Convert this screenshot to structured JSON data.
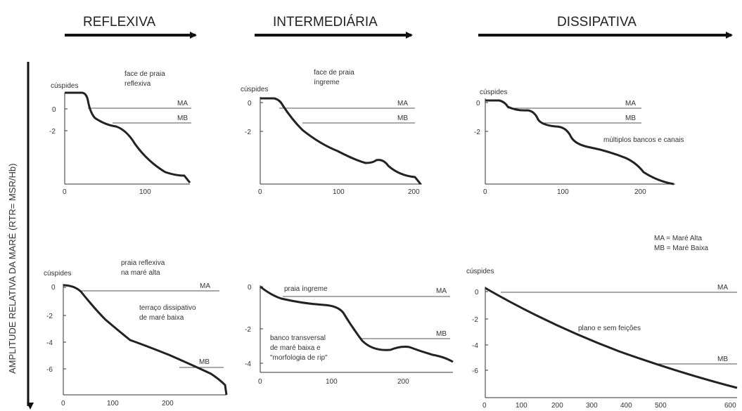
{
  "headers": {
    "reflexiva": "REFLEXIVA",
    "intermediaria": "INTERMEDIÁRIA",
    "dissipativa": "DISSIPATIVA"
  },
  "side_label": "AMPLITUDE RELATIVA DA MARÉ (RTR= MSR/Hb)",
  "legend": {
    "ma": "MA = Maré Alta",
    "mb": "MB = Maré Baixa"
  },
  "common": {
    "ma": "MA",
    "mb": "MB",
    "cuspides": "cúspides"
  },
  "panels": {
    "p1": {
      "note": [
        "face de praia",
        "reflexiva"
      ],
      "yticks": [
        "0",
        "-2"
      ],
      "xticks": [
        "0",
        "100"
      ]
    },
    "p2": {
      "note": [
        "face de praia",
        "íngreme"
      ],
      "yticks": [
        "0",
        "-2"
      ],
      "xticks": [
        "0",
        "100",
        "200"
      ]
    },
    "p3": {
      "note": "múltiplos bancos e canais",
      "yticks": [
        "0",
        "-2"
      ],
      "xticks": [
        "0",
        "100",
        "200"
      ]
    },
    "p4": {
      "note1": [
        "praia reflexiva",
        "na maré alta"
      ],
      "note2": [
        "terraço dissipativo",
        "de maré baixa"
      ],
      "yticks": [
        "0",
        "-2",
        "-4",
        "-6"
      ],
      "xticks": [
        "0",
        "100",
        "200"
      ]
    },
    "p5": {
      "note1": "praia íngreme",
      "note2": [
        "banco transversal",
        "de maré baixa e",
        "\"morfologia de rip\""
      ],
      "yticks": [
        "0",
        "-2",
        "-4"
      ],
      "xticks": [
        "0",
        "100",
        "200"
      ]
    },
    "p6": {
      "note": "plano e sem feições",
      "yticks": [
        "0",
        "-2",
        "-4",
        "-6"
      ],
      "xticks": [
        "0",
        "100",
        "200",
        "300",
        "400",
        "500",
        "600"
      ]
    }
  }
}
